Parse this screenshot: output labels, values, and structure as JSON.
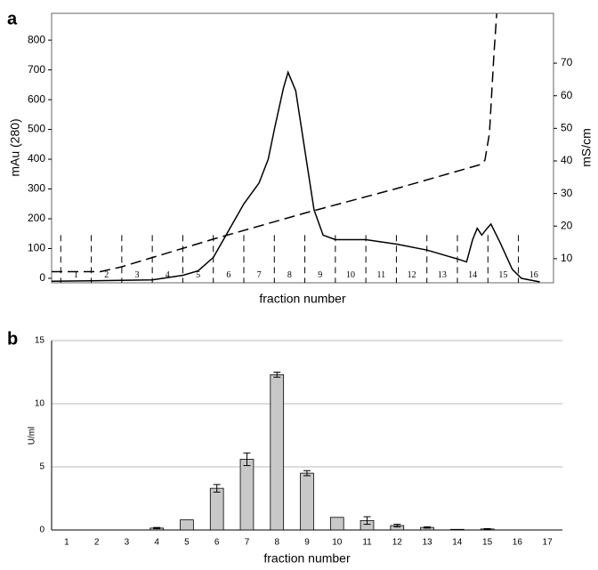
{
  "chart_data": [
    {
      "type": "line",
      "panel_label": "a",
      "x_label": "fraction number",
      "y_label": "mAu (280)",
      "y2_label": "mS/cm",
      "fractions": [
        "1",
        "2",
        "3",
        "4",
        "5",
        "6",
        "7",
        "8",
        "9",
        "10",
        "11",
        "12",
        "13",
        "14",
        "15",
        "16"
      ],
      "xlim": [
        -0.3,
        16.15
      ],
      "ylim": [
        -15,
        890
      ],
      "yticks": [
        0,
        100,
        200,
        300,
        400,
        500,
        600,
        700,
        800
      ],
      "y2lim": [
        2.6,
        85.3
      ],
      "y2ticks": [
        10,
        20,
        30,
        40,
        50,
        60,
        70
      ],
      "series": [
        {
          "color": "#000000",
          "line_style": "solid",
          "x": [
            -0.3,
            1,
            3,
            4,
            4.5,
            5,
            5.5,
            6,
            6.5,
            6.8,
            7,
            7.3,
            7.45,
            7.7,
            8,
            8.3,
            8.6,
            9,
            10,
            11,
            12,
            13,
            13.3,
            13.5,
            13.65,
            13.8,
            13.95,
            14.1,
            14.4,
            14.8,
            15.1,
            15.7
          ],
          "values": [
            -10,
            -8,
            -5,
            10,
            25,
            70,
            160,
            250,
            320,
            400,
            500,
            640,
            692,
            630,
            430,
            230,
            145,
            130,
            130,
            115,
            95,
            65,
            55,
            130,
            168,
            145,
            165,
            182,
            120,
            30,
            0,
            -12
          ]
        },
        {
          "color": "#000000",
          "line_style": "dashed",
          "axis": "y2",
          "x": [
            -0.3,
            1.3,
            2,
            5,
            8,
            11,
            13.76,
            13.9,
            14.05,
            14.2,
            14.29
          ],
          "values": [
            6,
            6,
            7.5,
            16,
            24,
            31.5,
            38.9,
            40.2,
            48.4,
            73,
            85.2
          ]
        }
      ]
    },
    {
      "type": "bar",
      "panel_label": "b",
      "x_label": "fraction number",
      "y_label": "U/ml",
      "categories": [
        "1",
        "2",
        "3",
        "4",
        "5",
        "6",
        "7",
        "8",
        "9",
        "10",
        "11",
        "12",
        "13",
        "14",
        "15",
        "16",
        "17"
      ],
      "values": [
        0,
        0,
        0,
        0.15,
        0.8,
        3.3,
        5.6,
        12.3,
        4.5,
        1.0,
        0.75,
        0.35,
        0.2,
        0.05,
        0.08,
        0,
        0
      ],
      "errors": [
        0,
        0,
        0,
        0.05,
        0,
        0.3,
        0.5,
        0.2,
        0.2,
        0,
        0.3,
        0.1,
        0.05,
        0,
        0.03,
        0,
        0
      ],
      "color": "#c8c8c8",
      "ylim": [
        0,
        15
      ],
      "yticks": [
        0,
        5,
        10,
        15
      ],
      "grid": true
    }
  ]
}
